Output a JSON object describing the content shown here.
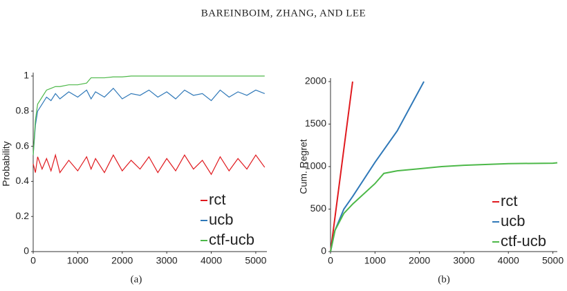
{
  "header": "Bareinboim, Zhang, and Lee",
  "chart_data": [
    {
      "type": "line",
      "caption": "(a)",
      "ylabel": "Probability",
      "xlim": [
        0,
        5250
      ],
      "xticks": [
        0,
        1000,
        2000,
        3000,
        4000,
        5000
      ],
      "ylim": [
        0,
        1
      ],
      "yticks": [
        0,
        0.2,
        0.4,
        0.6,
        0.8,
        1
      ],
      "x": [
        0,
        50,
        100,
        200,
        300,
        400,
        500,
        600,
        800,
        1000,
        1200,
        1300,
        1400,
        1600,
        1800,
        2000,
        2200,
        2400,
        2600,
        2800,
        3000,
        3200,
        3400,
        3600,
        3800,
        4000,
        4200,
        4400,
        4600,
        4800,
        5000,
        5200
      ],
      "series": [
        {
          "name": "rct",
          "color": "#e0191e",
          "values": [
            0.5,
            0.45,
            0.54,
            0.47,
            0.53,
            0.46,
            0.55,
            0.45,
            0.52,
            0.46,
            0.54,
            0.47,
            0.53,
            0.45,
            0.55,
            0.46,
            0.52,
            0.47,
            0.54,
            0.45,
            0.53,
            0.46,
            0.55,
            0.47,
            0.52,
            0.44,
            0.54,
            0.46,
            0.53,
            0.47,
            0.55,
            0.48
          ]
        },
        {
          "name": "ucb",
          "color": "#2f78b8",
          "values": [
            0.55,
            0.72,
            0.8,
            0.84,
            0.88,
            0.86,
            0.9,
            0.87,
            0.91,
            0.88,
            0.92,
            0.87,
            0.91,
            0.88,
            0.93,
            0.87,
            0.9,
            0.89,
            0.92,
            0.88,
            0.91,
            0.87,
            0.92,
            0.89,
            0.9,
            0.86,
            0.92,
            0.88,
            0.91,
            0.89,
            0.92,
            0.9
          ]
        },
        {
          "name": "ctf-ucb",
          "color": "#4cb848",
          "values": [
            0.55,
            0.75,
            0.84,
            0.88,
            0.92,
            0.93,
            0.94,
            0.94,
            0.95,
            0.95,
            0.96,
            0.99,
            0.99,
            0.99,
            0.995,
            0.995,
            1,
            1,
            1,
            1,
            1,
            1,
            1,
            1,
            1,
            1,
            1,
            1,
            1,
            1,
            1,
            1
          ]
        }
      ]
    },
    {
      "type": "line",
      "caption": "(b)",
      "ylabel": "Cum. Regret",
      "xlim": [
        0,
        5100
      ],
      "xticks": [
        0,
        1000,
        2000,
        3000,
        4000,
        5000
      ],
      "ylim": [
        0,
        2000
      ],
      "yticks": [
        0,
        500,
        1000,
        1500,
        2000
      ],
      "series": [
        {
          "name": "rct",
          "color": "#e0191e",
          "x": [
            0,
            497
          ],
          "values": [
            0,
            2000
          ]
        },
        {
          "name": "ucb",
          "color": "#2f78b8",
          "x": [
            0,
            100,
            300,
            500,
            1000,
            1500,
            2100
          ],
          "values": [
            0,
            250,
            500,
            650,
            1050,
            1420,
            2000
          ]
        },
        {
          "name": "ctf-ucb",
          "color": "#4cb848",
          "x": [
            0,
            100,
            300,
            500,
            1000,
            1200,
            1500,
            2000,
            2500,
            3000,
            4000,
            5000,
            5100
          ],
          "values": [
            0,
            250,
            450,
            560,
            800,
            920,
            950,
            975,
            1000,
            1015,
            1035,
            1040,
            1045
          ]
        }
      ]
    }
  ]
}
